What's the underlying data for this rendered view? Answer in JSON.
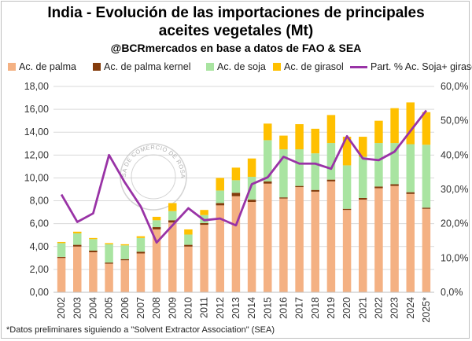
{
  "header": {
    "title_line1": "India - Evolución de las importaciones de principales",
    "title_line2": "aceites vegetales (Mt)",
    "subtitle": "@BCRmercados en base a datos de FAO & SEA"
  },
  "footnote": "*Datos preliminares siguiendo a \"Solvent Extractor Association\" (SEA)",
  "watermark": {
    "text": "BOLSA DE COMERCIO DE ROSARIO"
  },
  "colors": {
    "palma": "#f4b183",
    "palma_kernel": "#843c0c",
    "soja": "#a9e4a1",
    "girasol": "#ffc000",
    "line": "#9933a6",
    "grid": "#d9d9d9"
  },
  "chart_data": {
    "type": "bar",
    "stacked": true,
    "title": "India - Evolución de las importaciones de principales aceites vegetales (Mt)",
    "categories": [
      "2002",
      "2003",
      "2004",
      "2005",
      "2006",
      "2007",
      "2008",
      "2009",
      "2010",
      "2011",
      "2012",
      "2013",
      "2014",
      "2015",
      "2016",
      "2017",
      "2018",
      "2019",
      "2020",
      "2021",
      "2022",
      "2023",
      "2024",
      "2025*"
    ],
    "series": [
      {
        "name": "Ac. de palma",
        "color": "#f4b183",
        "values": [
          3.0,
          4.0,
          3.5,
          2.5,
          2.8,
          3.4,
          5.5,
          6.1,
          4.0,
          5.9,
          7.6,
          8.4,
          7.9,
          9.5,
          8.2,
          9.2,
          8.8,
          9.7,
          7.2,
          8.1,
          9.1,
          9.3,
          8.6,
          7.3
        ]
      },
      {
        "name": "Ac. de palma kernel",
        "color": "#843c0c",
        "values": [
          0.1,
          0.15,
          0.15,
          0.1,
          0.1,
          0.15,
          0.2,
          0.2,
          0.15,
          0.15,
          0.2,
          0.3,
          0.2,
          0.2,
          0.1,
          0.1,
          0.15,
          0.15,
          0.1,
          0.15,
          0.15,
          0.15,
          0.15,
          0.1
        ]
      },
      {
        "name": "Ac. de soja",
        "color": "#a9e4a1",
        "values": [
          1.2,
          1.0,
          1.0,
          1.6,
          1.2,
          1.2,
          0.6,
          0.8,
          0.9,
          0.7,
          1.1,
          1.1,
          2.0,
          3.6,
          4.2,
          3.2,
          3.2,
          3.2,
          3.8,
          3.6,
          3.8,
          3.6,
          4.2,
          5.5
        ]
      },
      {
        "name": "Ac. de girasol",
        "color": "#ffc000",
        "values": [
          0.1,
          0.15,
          0.1,
          0.1,
          0.1,
          0.15,
          0.3,
          0.7,
          0.45,
          0.45,
          1.1,
          1.1,
          1.6,
          1.45,
          1.2,
          2.2,
          2.15,
          2.45,
          2.5,
          1.75,
          1.95,
          3.05,
          3.65,
          2.85
        ]
      },
      {
        "name": "Part. % Ac. Soja+ girasol",
        "type": "line",
        "axis": "right",
        "color": "#9933a6",
        "values": [
          28.5,
          20.5,
          23.0,
          40.0,
          32.0,
          25.0,
          14.5,
          19.5,
          24.5,
          21.0,
          21.5,
          19.5,
          31.5,
          33.5,
          39.5,
          37.5,
          37.5,
          36.0,
          45.5,
          39.0,
          38.5,
          41.0,
          47.0,
          53.0
        ]
      }
    ],
    "ylim": [
      0,
      18
    ],
    "y_ticks": [
      "0,00",
      "2,00",
      "4,00",
      "6,00",
      "8,00",
      "10,00",
      "12,00",
      "14,00",
      "16,00",
      "18,00"
    ],
    "y2lim": [
      0,
      60
    ],
    "y2_ticks": [
      "0,0%",
      "10,0%",
      "20,0%",
      "30,0%",
      "40,0%",
      "50,0%",
      "60,0%"
    ],
    "grid": true,
    "legend": "top"
  }
}
